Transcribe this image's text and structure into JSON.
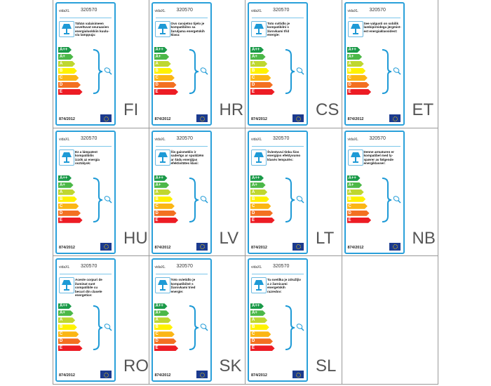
{
  "brand": "vidaXL",
  "product_number": "320570",
  "regulation": "874/2012",
  "energy_classes": [
    "A++",
    "A+",
    "A",
    "B",
    "C",
    "D",
    "E"
  ],
  "class_colors": [
    "#1a9a48",
    "#4cb848",
    "#bfd730",
    "#fff200",
    "#fbb615",
    "#f37021",
    "#ed1c24"
  ],
  "border_color": "#2aa0da",
  "labels": [
    {
      "lang": "FI",
      "text": "Tähän valaisimeen\nsoveltuvat seuraavien\nenergialuokkiin kuulu-\nvia lamppuja:"
    },
    {
      "lang": "HR",
      "text": "Ovo rasvjetno tijelo je\nkompatibilno sa\nžaruljama energetskih\nklasa:"
    },
    {
      "lang": "CS",
      "text": "Toto svítidlo je\nkompatibilní s\nžárovkami tříd\nenergie:"
    },
    {
      "lang": "ET",
      "text": "See valgusti on sobilik\nlambipirnidega järgmist-\nest energiaklassidest:"
    },
    {
      "lang": "HU",
      "text": "Ez a lámpatest\nkompatibilis\nizzók az energia\nosztályok:"
    },
    {
      "lang": "LV",
      "text": "Šis gaismeklis ir\nsaderīgs ar spuldzēm\nar šādu enerģijas\nefektivitātes klasi:"
    },
    {
      "lang": "LT",
      "text": "Šviestuvui tinka šios\nenergijos efektyvumo\nklasės lemputės:"
    },
    {
      "lang": "NB",
      "text": "Denne armaturen er\nkompatibel med ly-\nspærer av følgende\nenergiklasser:"
    },
    {
      "lang": "RO",
      "text": "Aceste corpuri de\niluminat sunt\ncompatibile cu\nbecuri din clasele\nenergetice:"
    },
    {
      "lang": "SK",
      "text": "Toto svietidlo je\nkompatibilné s\nžiarovkami tried\nenergie:"
    },
    {
      "lang": "SL",
      "text": "Ta svetilka je združljiv\na z žarnicami\nenergetskih\nrazredov:"
    }
  ]
}
